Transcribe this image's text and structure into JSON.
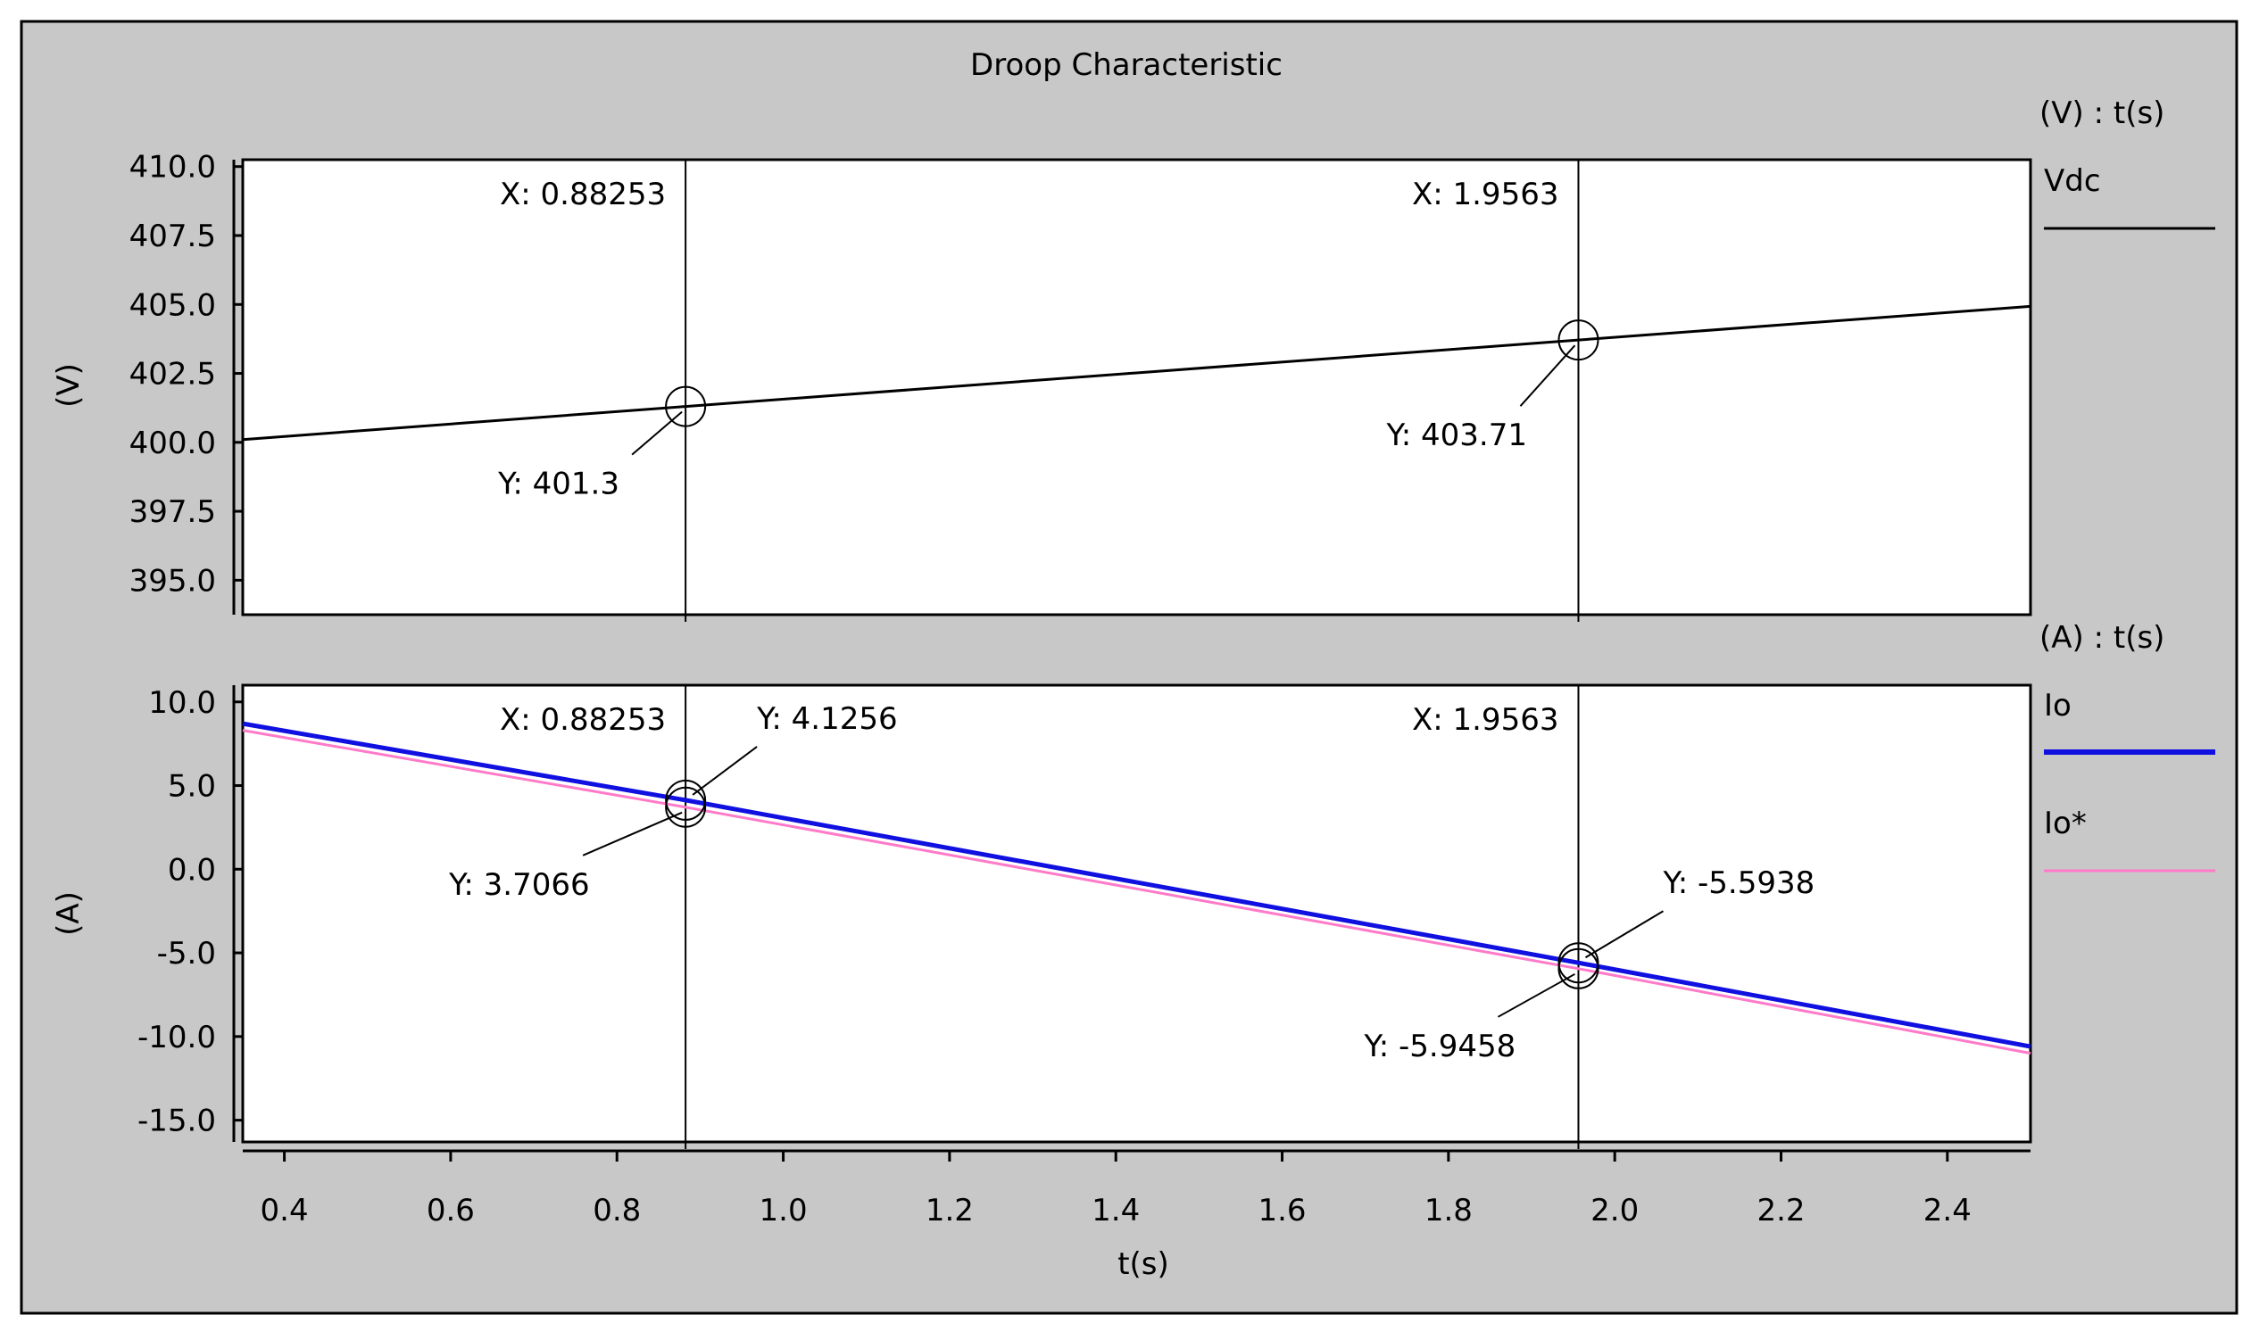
{
  "window": {
    "title": "Droop Characteristic"
  },
  "colors": {
    "frame_bg": "#c8c8c8",
    "plot_bg": "#ffffff",
    "vdc": "#000000",
    "io": "#1010e0",
    "io_ref": "#ff7ac8",
    "cursor": "#000000"
  },
  "chart_data": [
    {
      "type": "line",
      "title": "Droop Characteristic",
      "ylabel": "(V)",
      "legend_header": "(V) : t(s)",
      "legend_position": "right",
      "xlim": [
        0.35,
        2.5
      ],
      "ylim": [
        393.75,
        410.25
      ],
      "yticks": [
        395.0,
        397.5,
        400.0,
        402.5,
        405.0,
        407.5,
        410.0
      ],
      "ytick_labels": [
        "395.0",
        "397.5",
        "400.0",
        "402.5",
        "405.0",
        "407.5",
        "410.0"
      ],
      "series": [
        {
          "name": "Vdc",
          "color": "#000000",
          "x": [
            0.35,
            0.88253,
            1.9563,
            2.5
          ],
          "y": [
            400.1,
            401.3,
            403.71,
            404.93
          ]
        }
      ],
      "cursors": [
        {
          "x": 0.88253,
          "x_label": "X: 0.88253",
          "points": [
            {
              "y": 401.3,
              "label": "Y: 401.3"
            }
          ]
        },
        {
          "x": 1.9563,
          "x_label": "X: 1.9563",
          "points": [
            {
              "y": 403.71,
              "label": "Y: 403.71"
            }
          ]
        }
      ],
      "grid": false
    },
    {
      "type": "line",
      "ylabel": "(A)",
      "xlabel": "t(s)",
      "legend_header": "(A) : t(s)",
      "legend_position": "right",
      "xlim": [
        0.35,
        2.5
      ],
      "ylim": [
        -16.3,
        11.0
      ],
      "xticks": [
        0.4,
        0.6,
        0.8,
        1.0,
        1.2,
        1.4,
        1.6,
        1.8,
        2.0,
        2.2,
        2.4
      ],
      "xtick_labels": [
        "0.4",
        "0.6",
        "0.8",
        "1.0",
        "1.2",
        "1.4",
        "1.6",
        "1.8",
        "2.0",
        "2.2",
        "2.4"
      ],
      "yticks": [
        -15.0,
        -10.0,
        -5.0,
        0.0,
        5.0,
        10.0
      ],
      "ytick_labels": [
        "-15.0",
        "-10.0",
        "-5.0",
        "0.0",
        "5.0",
        "10.0"
      ],
      "series": [
        {
          "name": "Io",
          "color": "#1010e0",
          "x": [
            0.35,
            0.88253,
            1.9563,
            2.5
          ],
          "y": [
            8.7,
            4.1256,
            -5.5938,
            -10.6
          ]
        },
        {
          "name": "Io*",
          "color": "#ff7ac8",
          "x": [
            0.35,
            0.88253,
            1.9563,
            2.5
          ],
          "y": [
            8.3,
            3.7066,
            -5.9458,
            -11.0
          ]
        }
      ],
      "cursors": [
        {
          "x": 0.88253,
          "x_label": "X: 0.88253",
          "points": [
            {
              "y": 4.1256,
              "label": "Y: 4.1256"
            },
            {
              "y": 3.7066,
              "label": "Y: 3.7066"
            }
          ]
        },
        {
          "x": 1.9563,
          "x_label": "X: 1.9563",
          "points": [
            {
              "y": -5.5938,
              "label": "Y: -5.5938"
            },
            {
              "y": -5.9458,
              "label": "Y: -5.9458"
            }
          ]
        }
      ],
      "grid": false
    }
  ]
}
